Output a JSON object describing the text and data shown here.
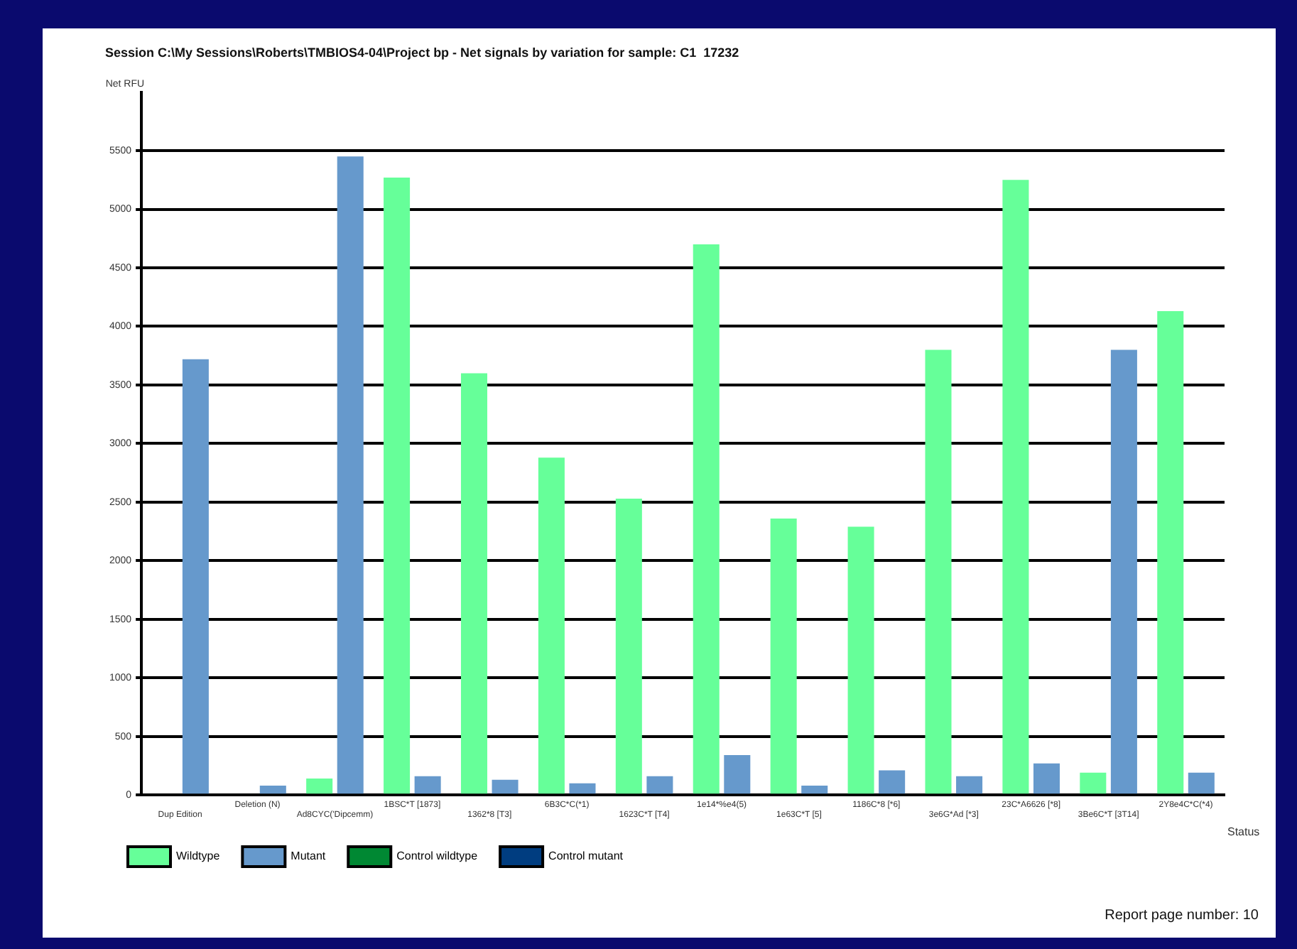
{
  "chart_data": {
    "type": "bar",
    "title": "Session C:\\My Sessions\\Roberts\\TMBIOS4-04\\Project bp - Net signals by variation for sample: C1  17232",
    "ylabel": "Net RFU",
    "xlabel": "Status",
    "categories": [
      "Dup Edition",
      "Deletion (N)",
      "Ad8CYC('Dipcemm)",
      "1BSC*T [1873]",
      "1362*8 [T3]",
      "6B3C*C(*1)",
      "1623C*T [T4]",
      "1e14*%e4(5)",
      "1e63C*T [5]",
      "1186C*8 [*6]",
      "3e6G*Ad [*3]",
      "23C*A6626 [*8]",
      "3Be6C*T [3T14]",
      "2Y8e4C*C(*4)"
    ],
    "series": [
      {
        "name": "Wildtype",
        "color": "#66ff99",
        "values": [
          null,
          null,
          140,
          5270,
          3600,
          2880,
          2530,
          4700,
          2360,
          2290,
          3800,
          5250,
          190,
          4130
        ]
      },
      {
        "name": "Mutant",
        "color": "#6699cc",
        "values": [
          3720,
          80,
          5450,
          160,
          130,
          100,
          160,
          340,
          80,
          210,
          160,
          270,
          3800,
          190
        ]
      },
      {
        "name": "Control wildtype",
        "color": "#008833",
        "values": [
          null,
          null,
          null,
          null,
          null,
          null,
          null,
          null,
          null,
          null,
          null,
          null,
          null,
          null
        ]
      },
      {
        "name": "Control mutant",
        "color": "#003d80",
        "values": [
          null,
          null,
          null,
          null,
          null,
          null,
          null,
          null,
          null,
          null,
          null,
          null,
          null,
          null
        ]
      }
    ],
    "ylim": [
      0,
      6000
    ],
    "yticks": [
      0,
      500,
      1000,
      1500,
      2000,
      2500,
      3000,
      3500,
      4000,
      4500,
      5000,
      5500
    ],
    "grid": "y",
    "legend": "bottom left",
    "annotations": [
      "Report page number: 10"
    ]
  }
}
